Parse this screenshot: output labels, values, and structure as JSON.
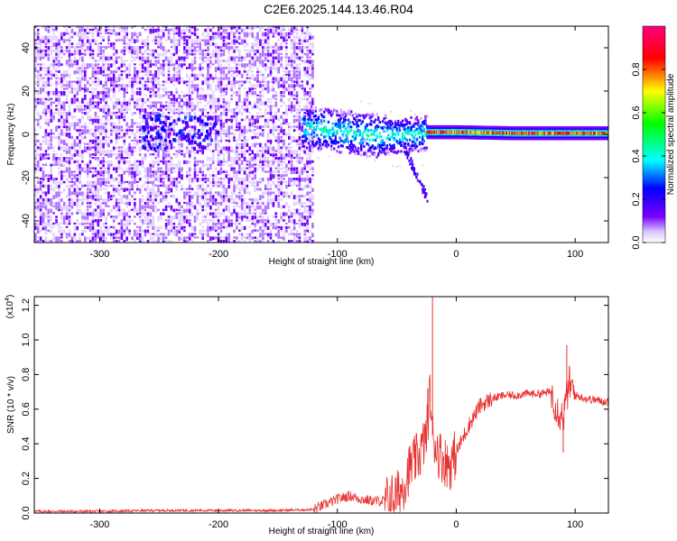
{
  "title": "C2E6.2025.144.13.46.R04",
  "chart_data": [
    {
      "type": "heatmap",
      "xlabel": "Height of straight line (km)",
      "ylabel": "Frequency (Hz)",
      "xlim": [
        -355,
        128
      ],
      "ylim": [
        -50,
        50
      ],
      "x_ticks": [
        -300,
        -200,
        -100,
        0,
        100
      ],
      "y_ticks": [
        -40,
        -20,
        0,
        20,
        40
      ],
      "colorbar": {
        "label": "Normalized spectral amplitude",
        "range": [
          0,
          1
        ],
        "ticks": [
          0.0,
          0.2,
          0.4,
          0.6,
          0.8
        ],
        "colors": [
          "#ffffff",
          "#7b00ff",
          "#0000ff",
          "#00ffff",
          "#00ff00",
          "#ffff00",
          "#ff0000",
          "#ff0080"
        ]
      },
      "regions": [
        {
          "x": [
            -355,
            -120
          ],
          "f": [
            -50,
            50
          ],
          "amplitude": 0.05
        },
        {
          "x": [
            -265,
            -200
          ],
          "f": [
            -6,
            10
          ],
          "amplitude": 0.15
        },
        {
          "x": [
            -130,
            -25
          ],
          "f": [
            -30,
            10
          ],
          "amplitude": 0.3
        },
        {
          "x": [
            -25,
            128
          ],
          "f": [
            -1,
            3
          ],
          "amplitude": 0.9
        }
      ],
      "ridge": [
        {
          "x": -130,
          "f": 4
        },
        {
          "x": -100,
          "f": 2
        },
        {
          "x": -70,
          "f": 0
        },
        {
          "x": -50,
          "f": 0
        },
        {
          "x": -30,
          "f": 1
        },
        {
          "x": 0,
          "f": 1
        },
        {
          "x": 50,
          "f": 0.5
        },
        {
          "x": 125,
          "f": 0.5
        }
      ]
    },
    {
      "type": "line",
      "xlabel": "Height of straight line (km)",
      "ylabel": "SNR (10 * v/v)",
      "y_multiplier": "(x10",
      "y_multiplier_exp": "4",
      "y_multiplier_close": ")",
      "xlim": [
        -355,
        128
      ],
      "ylim": [
        0,
        1.25
      ],
      "x_ticks": [
        -300,
        -200,
        -100,
        0,
        100
      ],
      "y_ticks": [
        0.0,
        0.2,
        0.4,
        0.6,
        0.8,
        1.0,
        1.2
      ],
      "line_color": "#e8302f",
      "series": [
        {
          "x": [
            -355,
            -300,
            -250,
            -200,
            -150,
            -120,
            -110,
            -100,
            -90,
            -80,
            -70,
            -60,
            -50,
            -45,
            -40,
            -35,
            -30,
            -25,
            -22,
            -20,
            -15,
            -10,
            -5,
            0,
            10,
            20,
            30,
            40,
            50,
            60,
            70,
            80,
            85,
            90,
            95,
            100,
            110,
            120,
            128
          ],
          "y": [
            0.01,
            0.01,
            0.015,
            0.015,
            0.015,
            0.02,
            0.05,
            0.08,
            0.1,
            0.08,
            0.07,
            0.07,
            0.1,
            0.15,
            0.25,
            0.3,
            0.35,
            0.45,
            0.7,
            0.45,
            0.35,
            0.3,
            0.28,
            0.35,
            0.5,
            0.62,
            0.66,
            0.68,
            0.68,
            0.69,
            0.69,
            0.7,
            0.6,
            0.55,
            0.75,
            0.68,
            0.66,
            0.65,
            0.64
          ]
        }
      ],
      "spikes": [
        {
          "x": -20,
          "y": 1.25
        },
        {
          "x": -24,
          "y": 0.72
        },
        {
          "x": 93,
          "y": 0.97
        },
        {
          "x": 90,
          "y": 0.35
        }
      ]
    }
  ]
}
